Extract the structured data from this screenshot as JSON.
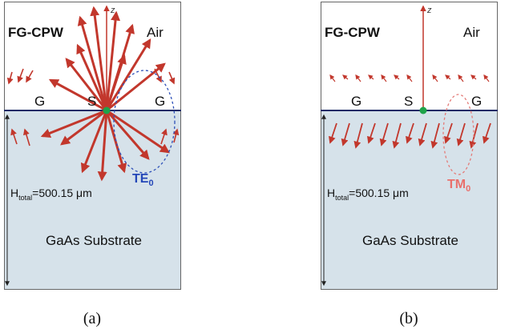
{
  "panels": [
    {
      "title": "FG-CPW",
      "medium": "Air",
      "axis": "z",
      "electrodes": [
        "G",
        "S",
        "G"
      ],
      "mode": {
        "text": "TE",
        "sub": "0"
      },
      "height": {
        "text": "H",
        "sub": "total",
        "value": "=500.15 μm"
      },
      "substrate": "GaAs Substrate",
      "caption": "(a)"
    },
    {
      "title": "FG-CPW",
      "medium": "Air",
      "axis": "z",
      "electrodes": [
        "G",
        "S",
        "G"
      ],
      "mode": {
        "text": "TM",
        "sub": "0"
      },
      "height": {
        "text": "H",
        "sub": "total",
        "value": "=500.15 μm"
      },
      "substrate": "GaAs Substrate",
      "caption": "(b)"
    }
  ]
}
